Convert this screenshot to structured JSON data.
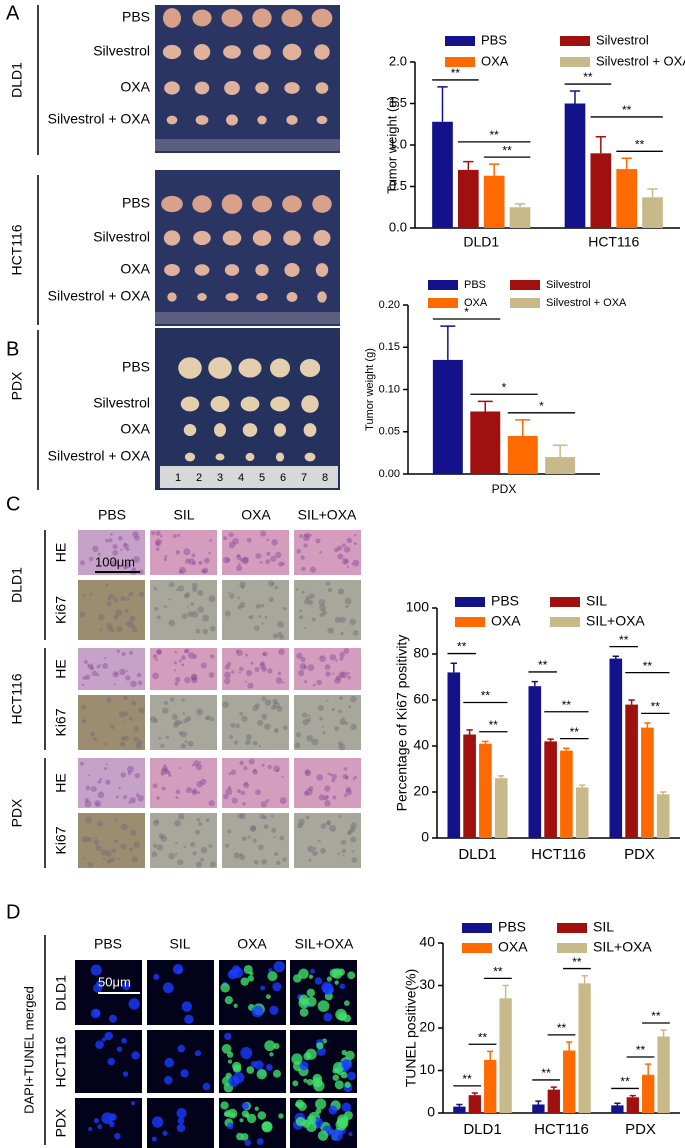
{
  "figure": {
    "panel_labels": [
      "A",
      "B",
      "C",
      "D"
    ],
    "panel_a": {
      "cell_lines": [
        "DLD1",
        "HCT116"
      ],
      "groups": [
        "PBS",
        "Silvestrol",
        "OXA",
        "Silvestrol + OXA"
      ]
    },
    "panel_b": {
      "model": "PDX",
      "groups": [
        "PBS",
        "Silvestrol",
        "OXA",
        "Silvestrol + OXA"
      ],
      "ruler": [
        1,
        2,
        3,
        4,
        5,
        6,
        7,
        8
      ]
    },
    "panel_c": {
      "columns": [
        "PBS",
        "SIL",
        "OXA",
        "SIL+OXA"
      ],
      "rows": [
        "DLD1",
        "HCT116",
        "PDX"
      ],
      "stains": [
        "HE",
        "Ki67"
      ],
      "scale_bar": "100μm"
    },
    "panel_d": {
      "columns": [
        "PBS",
        "SIL",
        "OXA",
        "SIL+OXA"
      ],
      "rows": [
        "DLD1",
        "HCT116",
        "PDX"
      ],
      "side_label": "DAPI+TUNEL merged",
      "scale_bar": "50μm"
    }
  },
  "chart_data": [
    {
      "type": "bar",
      "y_label": "Tumor weight (g)",
      "categories": [
        "DLD1",
        "HCT116"
      ],
      "series": [
        {
          "name": "PBS",
          "color": "#13128a",
          "values": [
            1.28,
            1.5
          ],
          "errors": [
            0.42,
            0.15
          ]
        },
        {
          "name": "Silvestrol",
          "color": "#a0100f",
          "values": [
            0.7,
            0.9
          ],
          "errors": [
            0.1,
            0.2
          ]
        },
        {
          "name": "OXA",
          "color": "#ff6a00",
          "values": [
            0.63,
            0.71
          ],
          "errors": [
            0.14,
            0.13
          ]
        },
        {
          "name": "Silvestrol + OXA",
          "color": "#c8b98a",
          "values": [
            0.25,
            0.37
          ],
          "errors": [
            0.04,
            0.1
          ]
        }
      ],
      "ylim": [
        0,
        2.0
      ],
      "yticks": [
        {
          "value": 0,
          "label": "0.0"
        },
        {
          "value": 0.5,
          "label": "0.5"
        },
        {
          "value": 1,
          "label": "1.0"
        },
        {
          "value": 1.5,
          "label": "1.5"
        },
        {
          "value": 2,
          "label": "2.0"
        }
      ],
      "annotations": [
        "**",
        "**",
        "**",
        "**",
        "**",
        "**"
      ]
    },
    {
      "type": "bar",
      "y_label": "Tumor weight (g)",
      "categories": [
        "PDX"
      ],
      "series": [
        {
          "name": "PBS",
          "color": "#13128a",
          "values": [
            0.135
          ],
          "errors": [
            0.04
          ]
        },
        {
          "name": "Silvestrol",
          "color": "#a0100f",
          "values": [
            0.074
          ],
          "errors": [
            0.012
          ]
        },
        {
          "name": "OXA",
          "color": "#ff6a00",
          "values": [
            0.045
          ],
          "errors": [
            0.019
          ]
        },
        {
          "name": "Silvestrol + OXA",
          "color": "#c8b98a",
          "values": [
            0.02
          ],
          "errors": [
            0.014
          ]
        }
      ],
      "ylim": [
        0,
        0.2
      ],
      "yticks": [
        {
          "value": 0,
          "label": "0.00"
        },
        {
          "value": 0.05,
          "label": "0.05"
        },
        {
          "value": 0.1,
          "label": "0.10"
        },
        {
          "value": 0.15,
          "label": "0.15"
        },
        {
          "value": 0.2,
          "label": "0.20"
        }
      ],
      "annotations": [
        "*",
        "*",
        "*"
      ]
    },
    {
      "type": "bar",
      "y_label": "Percentage of Ki67 positivity",
      "categories": [
        "DLD1",
        "HCT116",
        "PDX"
      ],
      "series": [
        {
          "name": "PBS",
          "color": "#13128a",
          "values": [
            72,
            66,
            78
          ],
          "errors": [
            4,
            2,
            1
          ]
        },
        {
          "name": "SIL",
          "color": "#a0100f",
          "values": [
            45,
            42,
            58
          ],
          "errors": [
            2,
            1,
            2
          ]
        },
        {
          "name": "OXA",
          "color": "#ff6a00",
          "values": [
            41,
            38,
            48
          ],
          "errors": [
            1,
            1,
            2
          ]
        },
        {
          "name": "SIL+OXA",
          "color": "#c8b98a",
          "values": [
            26,
            22,
            19
          ],
          "errors": [
            1,
            1,
            1
          ]
        }
      ],
      "ylim": [
        0,
        100
      ],
      "yticks": [
        0,
        20,
        40,
        60,
        80,
        100
      ],
      "annotations": [
        "**",
        "**",
        "**",
        "**",
        "**",
        "**",
        "**",
        "**",
        "**"
      ]
    },
    {
      "type": "bar",
      "y_label": "TUNEL positive(%)",
      "categories": [
        "DLD1",
        "HCT116",
        "PDX"
      ],
      "series": [
        {
          "name": "PBS",
          "color": "#13128a",
          "values": [
            1.5,
            2,
            1.8
          ],
          "errors": [
            0.5,
            0.8,
            0.5
          ]
        },
        {
          "name": "SIL",
          "color": "#a0100f",
          "values": [
            4.2,
            5.5,
            3.7
          ],
          "errors": [
            0.5,
            0.6,
            0.4
          ]
        },
        {
          "name": "OXA",
          "color": "#ff6a00",
          "values": [
            12.5,
            14.7,
            9
          ],
          "errors": [
            2,
            2,
            2.5
          ]
        },
        {
          "name": "SIL+OXA",
          "color": "#c8b98a",
          "values": [
            27,
            30.5,
            18
          ],
          "errors": [
            3,
            1.8,
            1.5
          ]
        }
      ],
      "ylim": [
        0,
        40
      ],
      "yticks": [
        0,
        10,
        20,
        30,
        40
      ],
      "annotations": [
        "**",
        "**",
        "**",
        "**",
        "**",
        "**",
        "**",
        "**",
        "**"
      ]
    }
  ]
}
